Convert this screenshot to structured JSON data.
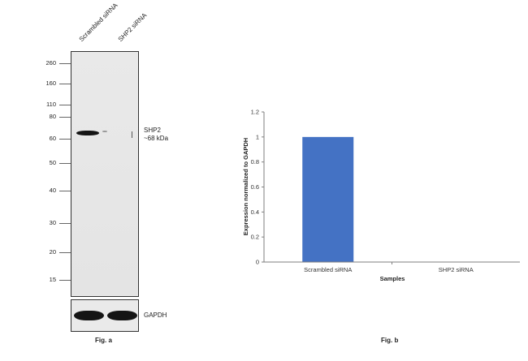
{
  "western_blot": {
    "lanes": [
      "Scrambled siRNA",
      "SHP2 siRNA"
    ],
    "markers": [
      {
        "label": "260",
        "kda": 260
      },
      {
        "label": "160",
        "kda": 160
      },
      {
        "label": "110",
        "kda": 110
      },
      {
        "label": "80",
        "kda": 80
      },
      {
        "label": "60",
        "kda": 60
      },
      {
        "label": "50",
        "kda": 50
      },
      {
        "label": "40",
        "kda": 40
      },
      {
        "label": "30",
        "kda": 30
      },
      {
        "label": "20",
        "kda": 20
      },
      {
        "label": "15",
        "kda": 15
      }
    ],
    "target_label_line1": "SHP2",
    "target_label_line2": "~68 kDa",
    "loading_control_label": "GAPDH",
    "figure_label": "Fig. a"
  },
  "chart_data": {
    "type": "bar",
    "categories": [
      "Scrambled siRNA",
      "SHP2 siRNA"
    ],
    "values": [
      1,
      0
    ],
    "title": "",
    "xlabel": "Samples",
    "ylabel": "Expression normalized to GAPDH",
    "ylim": [
      0,
      1.2
    ],
    "yticks": [
      "0",
      "0.2",
      "0.4",
      "0.6",
      "0.8",
      "1",
      "1.2"
    ],
    "bar_color": "#4472C4",
    "grid": false,
    "legend": "none"
  },
  "chart_figure_label": "Fig. b"
}
